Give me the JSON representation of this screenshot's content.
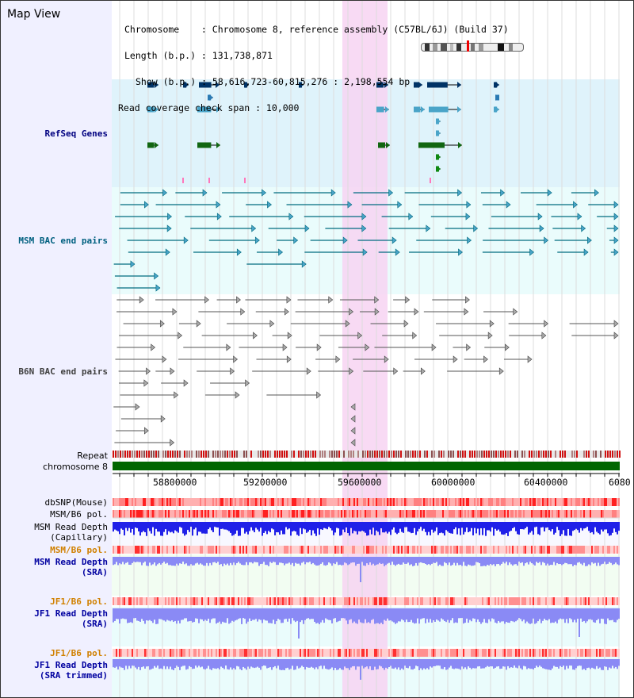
{
  "view": {
    "title": "Map View"
  },
  "info": {
    "line1": "Chromosome    : Chromosome 8, reference assembly (C57BL/6J) (Build 37)",
    "line2": "Length (b.p.) : 131,738,871",
    "line3": "Show (b.p.) : 58,616,723-60,815,276 : 2,198,554 bp",
    "line4": "Read coverage check span : 10,000"
  },
  "tracks": {
    "refseq": "RefSeq Genes",
    "msm_bac": "MSM BAC end pairs",
    "b6n_bac": "B6N BAC end pairs",
    "repeat": "Repeat",
    "chromosome": "chromosome 8",
    "dbsnp": "dbSNP(Mouse)",
    "msm_b6_pol_1": "MSM/B6 pol.",
    "msm_read_depth_cap": "MSM Read Depth\n(Capillary)",
    "msm_b6_pol_2": "MSM/B6 pol.",
    "msm_read_depth_sra": "MSM Read Depth\n(SRA)",
    "jf1_b6_pol_1": "JF1/B6 pol.",
    "jf1_read_depth_sra": "JF1 Read Depth\n(SRA)",
    "jf1_b6_pol_2": "JF1/B6 pol.",
    "jf1_read_depth_trimmed": "JF1 Read Depth\n(SRA trimmed)"
  },
  "ruler": {
    "ticks": [
      "58800000",
      "59200000",
      "59600000",
      "60000000",
      "60400000",
      "6080"
    ]
  },
  "colors": {
    "highlight": "#f7d4f2",
    "refseq_bg": "#dff3fb",
    "bac_bg": "#eafcfc",
    "chromosome_bar": "#006600",
    "depth_blue": "#2424ee",
    "depth_light": "#8a8af5"
  }
}
